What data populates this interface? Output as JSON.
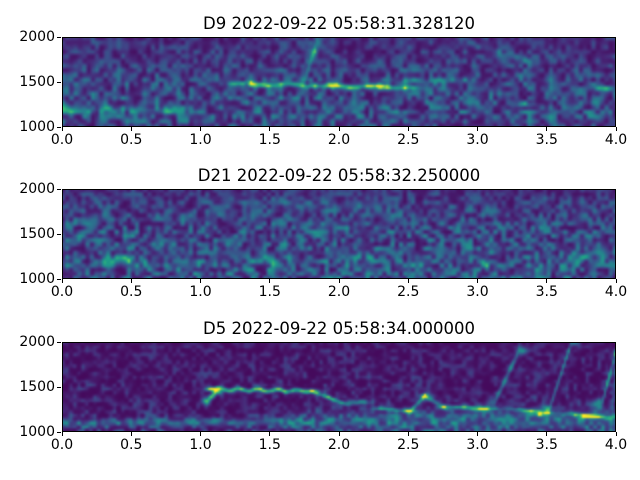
{
  "figure": {
    "background": "#ffffff",
    "text_color": "#000000",
    "frame_color": "#000000"
  },
  "chart_data": [
    {
      "type": "heatmap",
      "subtype": "spectrogram",
      "title": "D9 2022-09-22 05:58:31.328120",
      "colormap": "viridis",
      "colormap_colors": {
        "low": "#440154",
        "mid": "#21918c",
        "high": "#fde725"
      },
      "x_range": [
        0.0,
        4.0
      ],
      "y_range": [
        1000,
        2000
      ],
      "x_ticks": {
        "values": [
          0,
          0.5,
          1,
          1.5,
          2,
          2.5,
          3,
          3.5,
          4
        ],
        "labels": [
          "0.0",
          "0.5",
          "1.0",
          "1.5",
          "2.0",
          "2.5",
          "3.0",
          "3.5",
          "4.0"
        ]
      },
      "y_ticks": {
        "values": [
          2000,
          1500,
          1000
        ],
        "labels": [
          "2000",
          "1500",
          "1000"
        ]
      },
      "features_summary": "Dense speckled noise 1000-1900; green-yellow ridge near 1440-1480 from t 1.3-2.5; vertical burst at t 1.8 reaching 1950; bright spots at t 3.35 (1245) and t 3.9 (1430); low band near 1200 on the left.",
      "render": {
        "seed": 101,
        "base": 0.05,
        "noise": {
          "nx": 130,
          "ny": 20,
          "amp": 0.6,
          "gamma": 1.5
        },
        "profile": [
          [
            1000,
            0.8
          ],
          [
            1100,
            0.95
          ],
          [
            1250,
            0.9
          ],
          [
            1400,
            0.85
          ],
          [
            1550,
            0.8
          ],
          [
            1750,
            0.6
          ],
          [
            2000,
            0.5
          ]
        ],
        "features": [
          {
            "type": "seg",
            "t": [
              1.25,
              2.5
            ],
            "f": [
              1480,
              1440
            ],
            "rt": 0.07,
            "rf": 26,
            "amp": 0.5,
            "wig": 10,
            "wf": 4
          },
          {
            "type": "blob",
            "t": 1.42,
            "f": 1465,
            "rt": 0.09,
            "rf": 28,
            "amp": 0.38
          },
          {
            "type": "blob",
            "t": 1.95,
            "f": 1450,
            "rt": 0.1,
            "rf": 26,
            "amp": 0.34
          },
          {
            "type": "blob",
            "t": 2.25,
            "f": 1450,
            "rt": 0.08,
            "rf": 24,
            "amp": 0.28
          },
          {
            "type": "seg",
            "t": [
              1.76,
              1.84
            ],
            "f": [
              1560,
              1930
            ],
            "rt": 0.05,
            "rf": 70,
            "amp": 0.3
          },
          {
            "type": "blob",
            "t": 1.8,
            "f": 1860,
            "rt": 0.05,
            "rf": 60,
            "amp": 0.35
          },
          {
            "type": "blob",
            "t": 3.9,
            "f": 1430,
            "rt": 0.08,
            "rf": 30,
            "amp": 0.5
          },
          {
            "type": "blob",
            "t": 3.35,
            "f": 1245,
            "rt": 0.08,
            "rf": 28,
            "amp": 0.33
          },
          {
            "type": "seg",
            "t": [
              0.0,
              0.75
            ],
            "f": [
              1210,
              1190
            ],
            "rt": 0.12,
            "rf": 38,
            "amp": 0.22
          },
          {
            "type": "blob",
            "t": 0.03,
            "f": 1200,
            "rt": 0.06,
            "rf": 55,
            "amp": 0.3
          },
          {
            "type": "seg",
            "t": [
              2.95,
              3.4
            ],
            "f": [
              1930,
              1720
            ],
            "rt": 0.08,
            "rf": 45,
            "amp": 0.18
          },
          {
            "type": "seg",
            "t": [
              2.5,
              2.9
            ],
            "f": [
              1500,
              1520
            ],
            "rt": 0.1,
            "rf": 35,
            "amp": 0.2
          }
        ]
      }
    },
    {
      "type": "heatmap",
      "subtype": "spectrogram",
      "title": "D21 2022-09-22 05:58:32.250000",
      "colormap": "viridis",
      "colormap_colors": {
        "low": "#440154",
        "mid": "#21918c",
        "high": "#fde725"
      },
      "x_range": [
        0.0,
        4.0
      ],
      "y_range": [
        1000,
        2000
      ],
      "x_ticks": {
        "values": [
          0,
          0.5,
          1,
          1.5,
          2,
          2.5,
          3,
          3.5,
          4
        ],
        "labels": [
          "0.0",
          "0.5",
          "1.0",
          "1.5",
          "2.0",
          "2.5",
          "3.0",
          "3.5",
          "4.0"
        ]
      },
      "y_ticks": {
        "values": [
          2000,
          1500,
          1000
        ],
        "labels": [
          "2000",
          "1500",
          "1000"
        ]
      },
      "features_summary": "Uniform speckled noise 1000-1900 with no strong tonal contour; slightly brighter patches near 1100-1250 around t 0.45, 1.5, 2.1, 2.6 and 3.0; dimmer toward the top edge.",
      "render": {
        "seed": 202,
        "base": 0.05,
        "noise": {
          "nx": 135,
          "ny": 22,
          "amp": 0.62,
          "gamma": 1.4
        },
        "profile": [
          [
            1000,
            0.95
          ],
          [
            1200,
            1.0
          ],
          [
            1400,
            0.95
          ],
          [
            1600,
            0.85
          ],
          [
            1800,
            0.7
          ],
          [
            1950,
            0.5
          ],
          [
            2000,
            0.4
          ]
        ],
        "features": [
          {
            "type": "blob",
            "t": 0.45,
            "f": 1210,
            "rt": 0.14,
            "rf": 55,
            "amp": 0.28
          },
          {
            "type": "blob",
            "t": 1.5,
            "f": 1190,
            "rt": 0.12,
            "rf": 45,
            "amp": 0.28
          },
          {
            "type": "blob",
            "t": 2.1,
            "f": 1240,
            "rt": 0.09,
            "rf": 40,
            "amp": 0.2
          },
          {
            "type": "blob",
            "t": 2.6,
            "f": 1180,
            "rt": 0.09,
            "rf": 40,
            "amp": 0.24
          },
          {
            "type": "blob",
            "t": 3.05,
            "f": 1160,
            "rt": 0.1,
            "rf": 40,
            "amp": 0.2
          },
          {
            "type": "blob",
            "t": 0.9,
            "f": 1100,
            "rt": 0.09,
            "rf": 40,
            "amp": 0.18
          },
          {
            "type": "seg",
            "t": [
              1.2,
              2.3
            ],
            "f": [
              1870,
              1790
            ],
            "rt": 0.12,
            "rf": 55,
            "amp": 0.1
          },
          {
            "type": "blob",
            "t": 3.75,
            "f": 1250,
            "rt": 0.1,
            "rf": 45,
            "amp": 0.16
          }
        ]
      }
    },
    {
      "type": "heatmap",
      "subtype": "spectrogram",
      "title": "D5 2022-09-22 05:58:34.000000",
      "colormap": "viridis",
      "colormap_colors": {
        "low": "#440154",
        "mid": "#21918c",
        "high": "#fde725"
      },
      "x_range": [
        0.0,
        4.0
      ],
      "y_range": [
        1000,
        2000
      ],
      "x_ticks": {
        "values": [
          0,
          0.5,
          1,
          1.5,
          2,
          2.5,
          3,
          3.5,
          4
        ],
        "labels": [
          "0.0",
          "0.5",
          "1.0",
          "1.5",
          "2.0",
          "2.5",
          "3.0",
          "3.5",
          "4.0"
        ]
      },
      "y_ticks": {
        "values": [
          2000,
          1500,
          1000
        ],
        "labels": [
          "2000",
          "1500",
          "1000"
        ]
      },
      "features_summary": "Darker background with strong yellow whistle contour: onset at t 1.05 rising to ~1470, level ridge to t 1.8, descending to ~1300 by t 2.05; repeated arches near 1160-1400 between t 2.1-3.9; steep upsweeps to ~1900-2000 at t 3.2, 3.6 and 3.95; teal band near 1100 on left and broad low-frequency energy on right half.",
      "render": {
        "seed": 303,
        "base": 0.03,
        "noise": {
          "nx": 140,
          "ny": 24,
          "amp": 0.5,
          "gamma": 2.2
        },
        "profile": [
          [
            1000,
            0.9
          ],
          [
            1120,
            0.8
          ],
          [
            1250,
            0.55
          ],
          [
            1450,
            0.5
          ],
          [
            1700,
            0.5
          ],
          [
            1900,
            0.45
          ],
          [
            2000,
            0.3
          ]
        ],
        "features": [
          {
            "type": "seg",
            "t": [
              0.0,
              1.6
            ],
            "f": [
              1100,
              1110
            ],
            "rt": 0.2,
            "rf": 42,
            "amp": 0.26
          },
          {
            "type": "seg",
            "t": [
              2.0,
              4.0
            ],
            "f": [
              1120,
              1140
            ],
            "rt": 0.3,
            "rf": 120,
            "amp": 0.22
          },
          {
            "type": "seg",
            "t": [
              1.05,
              1.12
            ],
            "f": [
              1340,
              1460
            ],
            "rt": 0.04,
            "rf": 40,
            "amp": 0.55
          },
          {
            "type": "seg",
            "t": [
              1.1,
              1.8
            ],
            "f": [
              1475,
              1455
            ],
            "rt": 0.06,
            "rf": 22,
            "amp": 0.85,
            "wig": 12,
            "wf": 5
          },
          {
            "type": "seg",
            "t": [
              1.8,
              2.05
            ],
            "f": [
              1455,
              1310
            ],
            "rt": 0.05,
            "rf": 22,
            "amp": 0.6
          },
          {
            "type": "blob",
            "t": 2.15,
            "f": 1330,
            "rt": 0.07,
            "rf": 26,
            "amp": 0.55
          },
          {
            "type": "seg",
            "t": [
              2.3,
              2.5
            ],
            "f": [
              1260,
              1230
            ],
            "rt": 0.06,
            "rf": 20,
            "amp": 0.45
          },
          {
            "type": "seg",
            "t": [
              2.52,
              2.62
            ],
            "f": [
              1240,
              1400
            ],
            "rt": 0.04,
            "rf": 28,
            "amp": 0.55
          },
          {
            "type": "seg",
            "t": [
              2.62,
              2.78
            ],
            "f": [
              1400,
              1255
            ],
            "rt": 0.04,
            "rf": 28,
            "amp": 0.55
          },
          {
            "type": "seg",
            "t": [
              2.8,
              3.1
            ],
            "f": [
              1280,
              1260
            ],
            "rt": 0.07,
            "rf": 20,
            "amp": 0.5
          },
          {
            "type": "blob",
            "t": 3.0,
            "f": 1250,
            "rt": 0.06,
            "rf": 24,
            "amp": 0.5
          },
          {
            "type": "seg",
            "t": [
              3.12,
              3.3
            ],
            "f": [
              1320,
              1900
            ],
            "rt": 0.05,
            "rf": 50,
            "amp": 0.42
          },
          {
            "type": "seg",
            "t": [
              3.3,
              3.5
            ],
            "f": [
              1250,
              1215
            ],
            "rt": 0.06,
            "rf": 20,
            "amp": 0.5
          },
          {
            "type": "blob",
            "t": 3.45,
            "f": 1195,
            "rt": 0.06,
            "rf": 24,
            "amp": 0.55
          },
          {
            "type": "seg",
            "t": [
              3.52,
              3.68
            ],
            "f": [
              1260,
              2000
            ],
            "rt": 0.05,
            "rf": 50,
            "amp": 0.42
          },
          {
            "type": "seg",
            "t": [
              3.68,
              3.92
            ],
            "f": [
              1200,
              1160
            ],
            "rt": 0.07,
            "rf": 22,
            "amp": 0.5
          },
          {
            "type": "blob",
            "t": 3.82,
            "f": 1170,
            "rt": 0.06,
            "rf": 24,
            "amp": 0.5
          },
          {
            "type": "seg",
            "t": [
              3.9,
              4.02
            ],
            "f": [
              1320,
              2000
            ],
            "rt": 0.06,
            "rf": 55,
            "amp": 0.5
          },
          {
            "type": "seg",
            "t": [
              3.97,
              4.0
            ],
            "f": [
              1050,
              1800
            ],
            "rt": 0.05,
            "rf": 180,
            "amp": 0.22
          }
        ]
      }
    }
  ]
}
